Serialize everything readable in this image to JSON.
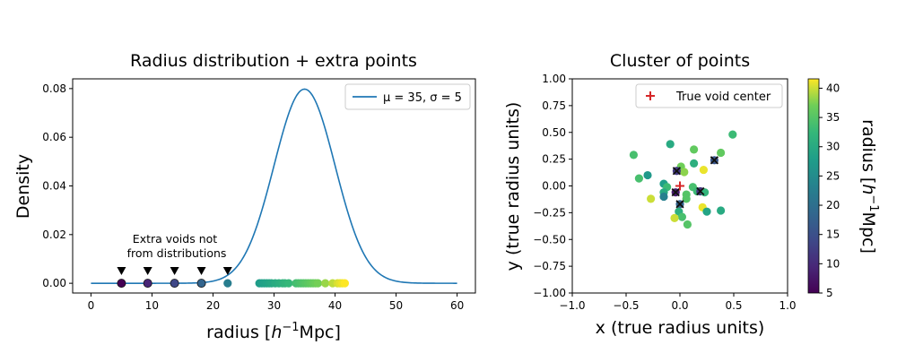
{
  "chart_data": [
    {
      "type": "line+scatter",
      "title": "Radius distribution + extra points",
      "xlabel_main": "radius [",
      "xlabel_sup": "−1",
      "xlabel_italic": "h",
      "xlabel_end": "Mpc]",
      "ylabel": "Density",
      "xlim": [
        -3,
        63
      ],
      "ylim": [
        -0.004,
        0.084
      ],
      "xticks": [
        0,
        10,
        20,
        30,
        40,
        50,
        60
      ],
      "yticks": [
        0.0,
        0.02,
        0.04,
        0.06,
        0.08
      ],
      "ytick_labels": [
        "0.00",
        "0.02",
        "0.04",
        "0.06",
        "0.08"
      ],
      "grid": false,
      "legend_placement": "upper right",
      "legend_label": "μ = 35, σ = 5",
      "curve": {
        "mu": 35,
        "sigma": 5,
        "x_range": [
          0,
          60
        ],
        "color": "#1f77b4"
      },
      "extra_voids_x": [
        5,
        9.3,
        13.7,
        18.1,
        22.4
      ],
      "extra_marker_y": 0.005,
      "sample_radii": [
        27.6,
        28.0,
        28.4,
        28.8,
        29.2,
        29.6,
        30.2,
        30.8,
        31.4,
        31.8,
        32.4,
        33.6,
        34.0,
        34.4,
        34.8,
        35.2,
        35.6,
        36.0,
        36.4,
        36.8,
        37.2,
        38.4,
        39.6,
        40.4,
        40.8,
        41.2,
        41.6
      ],
      "annotation": [
        "Extra voids not",
        "from distributions"
      ]
    },
    {
      "type": "scatter",
      "title": "Cluster of points",
      "xlabel": "x (true radius units)",
      "ylabel": "y (true radius units)",
      "xlim": [
        -1.0,
        1.0
      ],
      "ylim": [
        -1.0,
        1.0
      ],
      "xticks": [
        -1.0,
        -0.5,
        0.0,
        0.5,
        1.0
      ],
      "xtick_labels": [
        "−1.0",
        "−0.5",
        "0.0",
        "0.5",
        "1.0"
      ],
      "yticks": [
        -1.0,
        -0.75,
        -0.5,
        -0.25,
        0.0,
        0.25,
        0.5,
        0.75,
        1.0
      ],
      "ytick_labels": [
        "−1.00",
        "−0.75",
        "−0.50",
        "−0.25",
        "0.00",
        "0.25",
        "0.50",
        "0.75",
        "1.00"
      ],
      "legend_placement": "upper right",
      "legend_label": "True void center",
      "center": [
        0.0,
        0.0
      ],
      "points": [
        {
          "x": 0.49,
          "y": 0.48,
          "r": 33
        },
        {
          "x": 0.38,
          "y": 0.31,
          "r": 36
        },
        {
          "x": -0.09,
          "y": 0.39,
          "r": 30
        },
        {
          "x": 0.13,
          "y": 0.34,
          "r": 36
        },
        {
          "x": -0.43,
          "y": 0.29,
          "r": 34
        },
        {
          "x": 0.32,
          "y": 0.24,
          "r": 16
        },
        {
          "x": 0.13,
          "y": 0.21,
          "r": 31
        },
        {
          "x": 0.01,
          "y": 0.18,
          "r": 37
        },
        {
          "x": 0.04,
          "y": 0.13,
          "r": 38
        },
        {
          "x": -0.03,
          "y": 0.14,
          "r": 12
        },
        {
          "x": 0.22,
          "y": 0.15,
          "r": 41
        },
        {
          "x": -0.3,
          "y": 0.1,
          "r": 27
        },
        {
          "x": -0.38,
          "y": 0.07,
          "r": 34
        },
        {
          "x": -0.15,
          "y": 0.02,
          "r": 28
        },
        {
          "x": -0.12,
          "y": -0.01,
          "r": 33
        },
        {
          "x": 0.12,
          "y": -0.01,
          "r": 34
        },
        {
          "x": 0.16,
          "y": -0.05,
          "r": 33
        },
        {
          "x": 0.19,
          "y": -0.05,
          "r": 11
        },
        {
          "x": 0.23,
          "y": -0.06,
          "r": 32
        },
        {
          "x": -0.04,
          "y": -0.06,
          "r": 8
        },
        {
          "x": 0.06,
          "y": -0.08,
          "r": 35
        },
        {
          "x": -0.15,
          "y": -0.06,
          "r": 30
        },
        {
          "x": -0.15,
          "y": -0.1,
          "r": 23
        },
        {
          "x": 0.06,
          "y": -0.12,
          "r": 35
        },
        {
          "x": -0.27,
          "y": -0.12,
          "r": 40
        },
        {
          "x": 0.0,
          "y": -0.17,
          "r": 18
        },
        {
          "x": 0.21,
          "y": -0.2,
          "r": 41
        },
        {
          "x": 0.25,
          "y": -0.24,
          "r": 29
        },
        {
          "x": 0.38,
          "y": -0.23,
          "r": 30
        },
        {
          "x": -0.01,
          "y": -0.24,
          "r": 31
        },
        {
          "x": 0.02,
          "y": -0.29,
          "r": 34
        },
        {
          "x": -0.05,
          "y": -0.3,
          "r": 40
        },
        {
          "x": 0.07,
          "y": -0.36,
          "r": 35
        }
      ],
      "colorbar": {
        "label": "radius [h⁻¹Mpc]",
        "label_main": "radius [",
        "label_italic": "h",
        "label_sup": "−1",
        "label_end": "Mpc]",
        "range": [
          5,
          41.6
        ],
        "ticks": [
          5,
          10,
          15,
          20,
          25,
          30,
          35,
          40
        ],
        "colormap": "viridis"
      }
    }
  ]
}
